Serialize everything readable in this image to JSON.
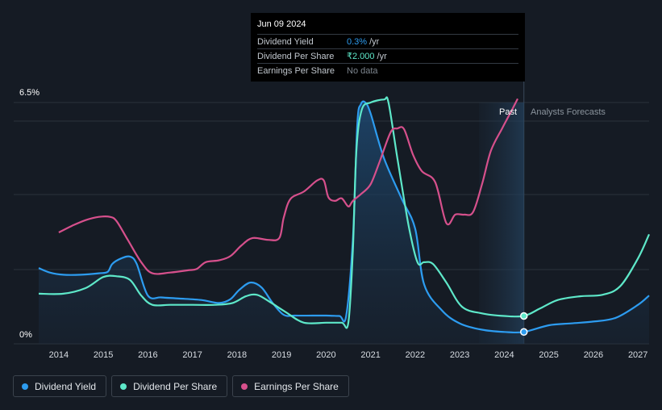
{
  "tooltip": {
    "date": "Jun 09 2024",
    "rows": [
      {
        "label": "Dividend Yield",
        "value": "0.3%",
        "unit": "/yr"
      },
      {
        "label": "Dividend Per Share",
        "value": "₹2.000",
        "unit": "/yr"
      },
      {
        "label": "Earnings Per Share",
        "value": "No data",
        "unit": ""
      }
    ]
  },
  "regions": {
    "past": "Past",
    "forecast": "Analysts Forecasts"
  },
  "legend": [
    {
      "label": "Dividend Yield",
      "color": "#2d9cf0"
    },
    {
      "label": "Dividend Per Share",
      "color": "#5ee8c9"
    },
    {
      "label": "Earnings Per Share",
      "color": "#d6508c"
    }
  ],
  "chart_data": {
    "type": "line",
    "y_axis_labels": [
      "6.5%",
      "0%"
    ],
    "x_tick_labels": [
      "2014",
      "2015",
      "2016",
      "2017",
      "2018",
      "2019",
      "2020",
      "2021",
      "2022",
      "2023",
      "2024",
      "2025",
      "2026",
      "2027"
    ],
    "x_range": [
      2013.55,
      2027.25
    ],
    "ylim": [
      0,
      6.5
    ],
    "y_unit": "%",
    "current_marker_x": 2024.44,
    "past_forecast_split_x": 2024.44,
    "series": [
      {
        "name": "Dividend Yield",
        "color": "#2d9cf0",
        "filled": true,
        "x": [
          2013.55,
          2013.8,
          2014.1,
          2014.5,
          2014.9,
          2015.1,
          2015.2,
          2015.4,
          2015.6,
          2015.75,
          2016.0,
          2016.3,
          2016.7,
          2017.2,
          2017.6,
          2017.85,
          2018.05,
          2018.3,
          2018.55,
          2018.8,
          2019.05,
          2019.3,
          2019.7,
          2020.0,
          2020.3,
          2020.45,
          2020.6,
          2020.7,
          2020.78,
          2020.88,
          2021.0,
          2021.3,
          2021.7,
          2022.0,
          2022.2,
          2022.6,
          2023.0,
          2023.5,
          2024.0,
          2024.44,
          2025.0,
          2025.5,
          2026.0,
          2026.5,
          2027.0,
          2027.25
        ],
        "y": [
          2.04,
          1.92,
          1.86,
          1.86,
          1.9,
          1.94,
          2.15,
          2.3,
          2.35,
          2.15,
          1.3,
          1.25,
          1.22,
          1.18,
          1.1,
          1.2,
          1.45,
          1.65,
          1.52,
          1.1,
          0.78,
          0.76,
          0.76,
          0.76,
          0.75,
          0.75,
          2.8,
          5.9,
          6.45,
          6.5,
          6.2,
          5.0,
          3.9,
          3.1,
          1.6,
          0.9,
          0.55,
          0.38,
          0.32,
          0.32,
          0.5,
          0.55,
          0.6,
          0.7,
          1.05,
          1.3
        ]
      },
      {
        "name": "Dividend Per Share",
        "color": "#5ee8c9",
        "filled": false,
        "x": [
          2013.55,
          2014.1,
          2014.6,
          2015.0,
          2015.3,
          2015.6,
          2015.85,
          2016.1,
          2016.5,
          2017.0,
          2017.5,
          2017.9,
          2018.2,
          2018.45,
          2018.75,
          2019.1,
          2019.5,
          2020.0,
          2020.35,
          2020.5,
          2020.6,
          2020.68,
          2020.8,
          2021.0,
          2021.3,
          2021.4,
          2021.6,
          2021.85,
          2022.05,
          2022.2,
          2022.4,
          2022.7,
          2023.05,
          2023.5,
          2024.0,
          2024.44,
          2024.8,
          2025.2,
          2025.7,
          2026.2,
          2026.6,
          2027.0,
          2027.25
        ],
        "y": [
          1.35,
          1.35,
          1.5,
          1.8,
          1.82,
          1.72,
          1.3,
          1.05,
          1.05,
          1.05,
          1.05,
          1.1,
          1.28,
          1.32,
          1.12,
          0.85,
          0.57,
          0.57,
          0.57,
          0.57,
          2.5,
          5.2,
          6.3,
          6.5,
          6.58,
          6.5,
          5.0,
          3.2,
          2.2,
          2.2,
          2.15,
          1.65,
          1.0,
          0.82,
          0.75,
          0.75,
          0.95,
          1.18,
          1.28,
          1.32,
          1.55,
          2.3,
          2.95
        ]
      },
      {
        "name": "Earnings Per Share",
        "color": "#d6508c",
        "filled": false,
        "x": [
          2014.0,
          2014.3,
          2014.6,
          2014.9,
          2015.15,
          2015.3,
          2015.55,
          2015.85,
          2016.1,
          2016.5,
          2016.9,
          2017.1,
          2017.3,
          2017.6,
          2017.85,
          2018.1,
          2018.35,
          2018.7,
          2018.95,
          2019.05,
          2019.2,
          2019.5,
          2019.8,
          2019.95,
          2020.05,
          2020.2,
          2020.35,
          2020.5,
          2020.6,
          2020.8,
          2021.0,
          2021.2,
          2021.45,
          2021.6,
          2021.75,
          2021.95,
          2022.15,
          2022.45,
          2022.7,
          2022.9,
          2023.1,
          2023.3,
          2023.5,
          2023.7,
          2023.95,
          2024.15,
          2024.3
        ],
        "y": [
          3.0,
          3.18,
          3.33,
          3.42,
          3.42,
          3.3,
          2.8,
          2.2,
          1.9,
          1.92,
          1.98,
          2.02,
          2.2,
          2.25,
          2.36,
          2.65,
          2.85,
          2.8,
          2.85,
          3.4,
          3.9,
          4.1,
          4.4,
          4.4,
          3.95,
          3.85,
          3.92,
          3.7,
          3.85,
          4.05,
          4.3,
          4.9,
          5.7,
          5.8,
          5.78,
          5.1,
          4.65,
          4.35,
          3.25,
          3.48,
          3.48,
          3.55,
          4.3,
          5.2,
          5.8,
          6.25,
          6.6
        ]
      }
    ]
  }
}
